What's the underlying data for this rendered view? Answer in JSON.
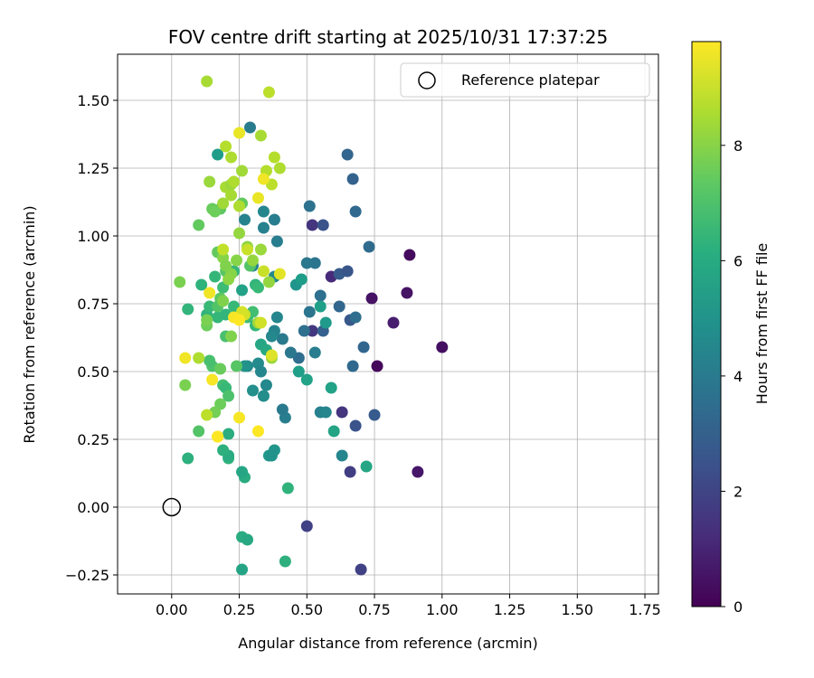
{
  "chart_data": {
    "type": "scatter",
    "title": "FOV centre drift starting at 2025/10/31 17:37:25",
    "xlabel": "Angular distance from reference (arcmin)",
    "ylabel": "Rotation from reference (arcmin)",
    "xlim": [
      -0.2,
      1.8
    ],
    "ylim": [
      -0.32,
      1.67
    ],
    "xticks": [
      "0.00",
      "0.25",
      "0.50",
      "0.75",
      "1.00",
      "1.25",
      "1.50",
      "1.75"
    ],
    "yticks": [
      "−0.25",
      "0.00",
      "0.25",
      "0.50",
      "0.75",
      "1.00",
      "1.25",
      "1.50"
    ],
    "grid": true,
    "legend": {
      "position": "top-right",
      "entries": [
        "Reference platepar"
      ]
    },
    "colorbar": {
      "label": "Hours from first FF file",
      "range": [
        0,
        9.8
      ],
      "ticks": [
        "0",
        "2",
        "4",
        "6",
        "8"
      ],
      "colormap": "viridis"
    },
    "reference_point": {
      "x": 0.0,
      "y": 0.0
    },
    "points": [
      {
        "x": 0.88,
        "y": 0.93,
        "h": 0.3
      },
      {
        "x": 0.87,
        "y": 0.79,
        "h": 0.5
      },
      {
        "x": 1.0,
        "y": 0.59,
        "h": 0.4
      },
      {
        "x": 0.91,
        "y": 0.13,
        "h": 0.6
      },
      {
        "x": 0.82,
        "y": 0.68,
        "h": 0.8
      },
      {
        "x": 0.74,
        "y": 0.77,
        "h": 0.5
      },
      {
        "x": 0.76,
        "y": 0.52,
        "h": 0.2
      },
      {
        "x": 0.59,
        "y": 0.85,
        "h": 1.2
      },
      {
        "x": 0.52,
        "y": 1.04,
        "h": 1.5
      },
      {
        "x": 0.52,
        "y": 0.65,
        "h": 1.6
      },
      {
        "x": 0.63,
        "y": 0.35,
        "h": 1.5
      },
      {
        "x": 0.66,
        "y": 0.13,
        "h": 1.8
      },
      {
        "x": 0.5,
        "y": -0.07,
        "h": 1.9
      },
      {
        "x": 0.7,
        "y": -0.23,
        "h": 1.9
      },
      {
        "x": 0.56,
        "y": 1.04,
        "h": 2.5
      },
      {
        "x": 0.62,
        "y": 0.86,
        "h": 2.8
      },
      {
        "x": 0.65,
        "y": 0.87,
        "h": 2.6
      },
      {
        "x": 0.66,
        "y": 0.69,
        "h": 2.7
      },
      {
        "x": 0.68,
        "y": 0.3,
        "h": 2.5
      },
      {
        "x": 0.56,
        "y": 0.65,
        "h": 3.0
      },
      {
        "x": 0.75,
        "y": 0.34,
        "h": 2.8
      },
      {
        "x": 0.65,
        "y": 1.3,
        "h": 3.2
      },
      {
        "x": 0.67,
        "y": 1.21,
        "h": 3.1
      },
      {
        "x": 0.68,
        "y": 1.09,
        "h": 3.3
      },
      {
        "x": 0.73,
        "y": 0.96,
        "h": 3.4
      },
      {
        "x": 0.71,
        "y": 0.59,
        "h": 3.2
      },
      {
        "x": 0.67,
        "y": 0.52,
        "h": 3.3
      },
      {
        "x": 0.68,
        "y": 0.7,
        "h": 3.5
      },
      {
        "x": 0.62,
        "y": 0.74,
        "h": 3.2
      },
      {
        "x": 0.55,
        "y": 0.78,
        "h": 3.6
      },
      {
        "x": 0.53,
        "y": 0.9,
        "h": 3.8
      },
      {
        "x": 0.51,
        "y": 1.11,
        "h": 3.7
      },
      {
        "x": 0.5,
        "y": 0.9,
        "h": 3.9
      },
      {
        "x": 0.51,
        "y": 0.72,
        "h": 3.8
      },
      {
        "x": 0.49,
        "y": 0.65,
        "h": 3.6
      },
      {
        "x": 0.47,
        "y": 0.55,
        "h": 3.5
      },
      {
        "x": 0.44,
        "y": 0.57,
        "h": 3.9
      },
      {
        "x": 0.41,
        "y": 0.62,
        "h": 4.0
      },
      {
        "x": 0.42,
        "y": 0.33,
        "h": 4.2
      },
      {
        "x": 0.41,
        "y": 0.36,
        "h": 4.0
      },
      {
        "x": 0.53,
        "y": 0.57,
        "h": 4.2
      },
      {
        "x": 0.55,
        "y": 0.35,
        "h": 4.3
      },
      {
        "x": 0.57,
        "y": 0.35,
        "h": 4.5
      },
      {
        "x": 0.63,
        "y": 0.19,
        "h": 4.5
      },
      {
        "x": 0.29,
        "y": 1.4,
        "h": 4.1
      },
      {
        "x": 0.38,
        "y": 1.06,
        "h": 4.2
      },
      {
        "x": 0.34,
        "y": 1.09,
        "h": 4.5
      },
      {
        "x": 0.34,
        "y": 1.03,
        "h": 4.3
      },
      {
        "x": 0.27,
        "y": 1.06,
        "h": 4.4
      },
      {
        "x": 0.39,
        "y": 0.98,
        "h": 4.2
      },
      {
        "x": 0.3,
        "y": 0.89,
        "h": 4.3
      },
      {
        "x": 0.38,
        "y": 0.85,
        "h": 4.6
      },
      {
        "x": 0.39,
        "y": 0.7,
        "h": 4.5
      },
      {
        "x": 0.38,
        "y": 0.65,
        "h": 4.4
      },
      {
        "x": 0.37,
        "y": 0.63,
        "h": 4.6
      },
      {
        "x": 0.32,
        "y": 0.53,
        "h": 4.7
      },
      {
        "x": 0.33,
        "y": 0.5,
        "h": 4.5
      },
      {
        "x": 0.35,
        "y": 0.45,
        "h": 4.6
      },
      {
        "x": 0.34,
        "y": 0.41,
        "h": 4.8
      },
      {
        "x": 0.3,
        "y": 0.43,
        "h": 4.9
      },
      {
        "x": 0.28,
        "y": 0.52,
        "h": 4.7
      },
      {
        "x": 0.27,
        "y": 0.52,
        "h": 5.0
      },
      {
        "x": 0.38,
        "y": 0.21,
        "h": 5.1
      },
      {
        "x": 0.36,
        "y": 0.19,
        "h": 5.2
      },
      {
        "x": 0.37,
        "y": 0.19,
        "h": 5.0
      },
      {
        "x": 0.46,
        "y": 0.82,
        "h": 5.1
      },
      {
        "x": 0.48,
        "y": 0.84,
        "h": 5.4
      },
      {
        "x": 0.57,
        "y": 0.68,
        "h": 5.3
      },
      {
        "x": 0.55,
        "y": 0.74,
        "h": 5.5
      },
      {
        "x": 0.59,
        "y": 0.44,
        "h": 5.6
      },
      {
        "x": 0.6,
        "y": 0.28,
        "h": 5.7
      },
      {
        "x": 0.72,
        "y": 0.15,
        "h": 5.8
      },
      {
        "x": 0.47,
        "y": 0.5,
        "h": 5.5
      },
      {
        "x": 0.5,
        "y": 0.47,
        "h": 5.6
      },
      {
        "x": 0.17,
        "y": 1.3,
        "h": 5.4
      },
      {
        "x": 0.26,
        "y": 0.8,
        "h": 5.6
      },
      {
        "x": 0.33,
        "y": 0.6,
        "h": 5.8
      },
      {
        "x": 0.35,
        "y": 0.58,
        "h": 5.9
      },
      {
        "x": 0.27,
        "y": 0.11,
        "h": 6.0
      },
      {
        "x": 0.26,
        "y": 0.13,
        "h": 5.8
      },
      {
        "x": 0.26,
        "y": -0.11,
        "h": 6.0
      },
      {
        "x": 0.28,
        "y": -0.12,
        "h": 5.9
      },
      {
        "x": 0.26,
        "y": -0.23,
        "h": 5.7
      },
      {
        "x": 0.42,
        "y": -0.2,
        "h": 6.2
      },
      {
        "x": 0.43,
        "y": 0.07,
        "h": 6.3
      },
      {
        "x": 0.21,
        "y": 0.27,
        "h": 6.1
      },
      {
        "x": 0.21,
        "y": 0.18,
        "h": 6.3
      },
      {
        "x": 0.21,
        "y": 0.19,
        "h": 6.0
      },
      {
        "x": 0.19,
        "y": 0.21,
        "h": 6.2
      },
      {
        "x": 0.06,
        "y": 0.18,
        "h": 6.2
      },
      {
        "x": 0.06,
        "y": 0.73,
        "h": 6.4
      },
      {
        "x": 0.11,
        "y": 0.82,
        "h": 6.3
      },
      {
        "x": 0.16,
        "y": 0.85,
        "h": 6.5
      },
      {
        "x": 0.13,
        "y": 0.71,
        "h": 6.3
      },
      {
        "x": 0.14,
        "y": 0.74,
        "h": 6.6
      },
      {
        "x": 0.17,
        "y": 0.7,
        "h": 6.5
      },
      {
        "x": 0.2,
        "y": 0.71,
        "h": 6.4
      },
      {
        "x": 0.23,
        "y": 0.74,
        "h": 6.6
      },
      {
        "x": 0.25,
        "y": 0.71,
        "h": 6.3
      },
      {
        "x": 0.28,
        "y": 0.7,
        "h": 6.7
      },
      {
        "x": 0.31,
        "y": 0.67,
        "h": 6.5
      },
      {
        "x": 0.31,
        "y": 0.82,
        "h": 6.4
      },
      {
        "x": 0.3,
        "y": 0.72,
        "h": 6.8
      },
      {
        "x": 0.32,
        "y": 0.81,
        "h": 6.6
      },
      {
        "x": 0.23,
        "y": 0.87,
        "h": 6.5
      },
      {
        "x": 0.19,
        "y": 0.81,
        "h": 6.7
      },
      {
        "x": 0.2,
        "y": 0.63,
        "h": 6.9
      },
      {
        "x": 0.19,
        "y": 0.45,
        "h": 6.8
      },
      {
        "x": 0.2,
        "y": 0.44,
        "h": 6.6
      },
      {
        "x": 0.21,
        "y": 0.41,
        "h": 7.0
      },
      {
        "x": 0.15,
        "y": 0.52,
        "h": 7.0
      },
      {
        "x": 0.1,
        "y": 0.28,
        "h": 7.1
      },
      {
        "x": 0.14,
        "y": 0.54,
        "h": 6.9
      },
      {
        "x": 0.29,
        "y": 0.89,
        "h": 7.1
      },
      {
        "x": 0.24,
        "y": 0.52,
        "h": 7.2
      },
      {
        "x": 0.18,
        "y": 0.77,
        "h": 7.3
      },
      {
        "x": 0.17,
        "y": 0.74,
        "h": 7.1
      },
      {
        "x": 0.2,
        "y": 0.87,
        "h": 7.2
      },
      {
        "x": 0.17,
        "y": 0.94,
        "h": 7.4
      },
      {
        "x": 0.1,
        "y": 1.04,
        "h": 7.4
      },
      {
        "x": 0.15,
        "y": 1.1,
        "h": 7.5
      },
      {
        "x": 0.18,
        "y": 1.1,
        "h": 7.3
      },
      {
        "x": 0.16,
        "y": 1.09,
        "h": 7.6
      },
      {
        "x": 0.26,
        "y": 1.12,
        "h": 7.4
      },
      {
        "x": 0.18,
        "y": 0.51,
        "h": 7.5
      },
      {
        "x": 0.13,
        "y": 0.67,
        "h": 7.6
      },
      {
        "x": 0.13,
        "y": 0.69,
        "h": 7.8
      },
      {
        "x": 0.18,
        "y": 0.38,
        "h": 7.6
      },
      {
        "x": 0.16,
        "y": 0.35,
        "h": 7.7
      },
      {
        "x": 0.05,
        "y": 0.45,
        "h": 7.8
      },
      {
        "x": 0.03,
        "y": 0.83,
        "h": 7.8
      },
      {
        "x": 0.19,
        "y": 0.76,
        "h": 7.9
      },
      {
        "x": 0.22,
        "y": 0.63,
        "h": 7.9
      },
      {
        "x": 0.22,
        "y": 0.86,
        "h": 8.0
      },
      {
        "x": 0.19,
        "y": 0.92,
        "h": 8.0
      },
      {
        "x": 0.2,
        "y": 0.89,
        "h": 7.9
      },
      {
        "x": 0.21,
        "y": 0.84,
        "h": 8.1
      },
      {
        "x": 0.24,
        "y": 0.91,
        "h": 8.0
      },
      {
        "x": 0.25,
        "y": 1.01,
        "h": 8.2
      },
      {
        "x": 0.28,
        "y": 0.96,
        "h": 8.1
      },
      {
        "x": 0.3,
        "y": 0.91,
        "h": 8.2
      },
      {
        "x": 0.33,
        "y": 0.95,
        "h": 8.3
      },
      {
        "x": 0.36,
        "y": 0.83,
        "h": 8.2
      },
      {
        "x": 0.37,
        "y": 0.55,
        "h": 8.3
      },
      {
        "x": 0.32,
        "y": 0.68,
        "h": 8.4
      },
      {
        "x": 0.14,
        "y": 1.2,
        "h": 8.3
      },
      {
        "x": 0.19,
        "y": 1.12,
        "h": 8.4
      },
      {
        "x": 0.2,
        "y": 1.18,
        "h": 8.5
      },
      {
        "x": 0.22,
        "y": 1.19,
        "h": 8.3
      },
      {
        "x": 0.23,
        "y": 1.2,
        "h": 8.6
      },
      {
        "x": 0.22,
        "y": 1.15,
        "h": 8.5
      },
      {
        "x": 0.25,
        "y": 1.11,
        "h": 8.6
      },
      {
        "x": 0.26,
        "y": 1.24,
        "h": 8.4
      },
      {
        "x": 0.2,
        "y": 1.33,
        "h": 8.7
      },
      {
        "x": 0.22,
        "y": 1.29,
        "h": 8.6
      },
      {
        "x": 0.33,
        "y": 1.37,
        "h": 8.5
      },
      {
        "x": 0.35,
        "y": 1.24,
        "h": 8.7
      },
      {
        "x": 0.38,
        "y": 1.29,
        "h": 8.7
      },
      {
        "x": 0.37,
        "y": 1.19,
        "h": 8.8
      },
      {
        "x": 0.4,
        "y": 1.25,
        "h": 8.6
      },
      {
        "x": 0.13,
        "y": 1.57,
        "h": 8.5
      },
      {
        "x": 0.36,
        "y": 1.53,
        "h": 8.8
      },
      {
        "x": 0.1,
        "y": 0.55,
        "h": 8.6
      },
      {
        "x": 0.13,
        "y": 0.34,
        "h": 8.8
      },
      {
        "x": 0.17,
        "y": 0.26,
        "h": 8.9
      },
      {
        "x": 0.19,
        "y": 0.95,
        "h": 8.9
      },
      {
        "x": 0.28,
        "y": 0.95,
        "h": 9.0
      },
      {
        "x": 0.34,
        "y": 0.87,
        "h": 9.0
      },
      {
        "x": 0.27,
        "y": 0.71,
        "h": 9.1
      },
      {
        "x": 0.26,
        "y": 0.72,
        "h": 9.2
      },
      {
        "x": 0.33,
        "y": 0.68,
        "h": 9.1
      },
      {
        "x": 0.37,
        "y": 0.56,
        "h": 9.3
      },
      {
        "x": 0.4,
        "y": 0.86,
        "h": 9.4
      },
      {
        "x": 0.25,
        "y": 1.38,
        "h": 9.5
      },
      {
        "x": 0.34,
        "y": 1.21,
        "h": 9.6
      },
      {
        "x": 0.32,
        "y": 1.14,
        "h": 9.5
      },
      {
        "x": 0.14,
        "y": 0.79,
        "h": 9.6
      },
      {
        "x": 0.05,
        "y": 0.55,
        "h": 9.6
      },
      {
        "x": 0.15,
        "y": 0.47,
        "h": 9.7
      },
      {
        "x": 0.25,
        "y": 0.33,
        "h": 9.7
      },
      {
        "x": 0.17,
        "y": 0.26,
        "h": 9.8
      },
      {
        "x": 0.32,
        "y": 0.28,
        "h": 9.8
      },
      {
        "x": 0.23,
        "y": 0.7,
        "h": 9.7
      },
      {
        "x": 0.25,
        "y": 0.69,
        "h": 9.8
      }
    ]
  }
}
